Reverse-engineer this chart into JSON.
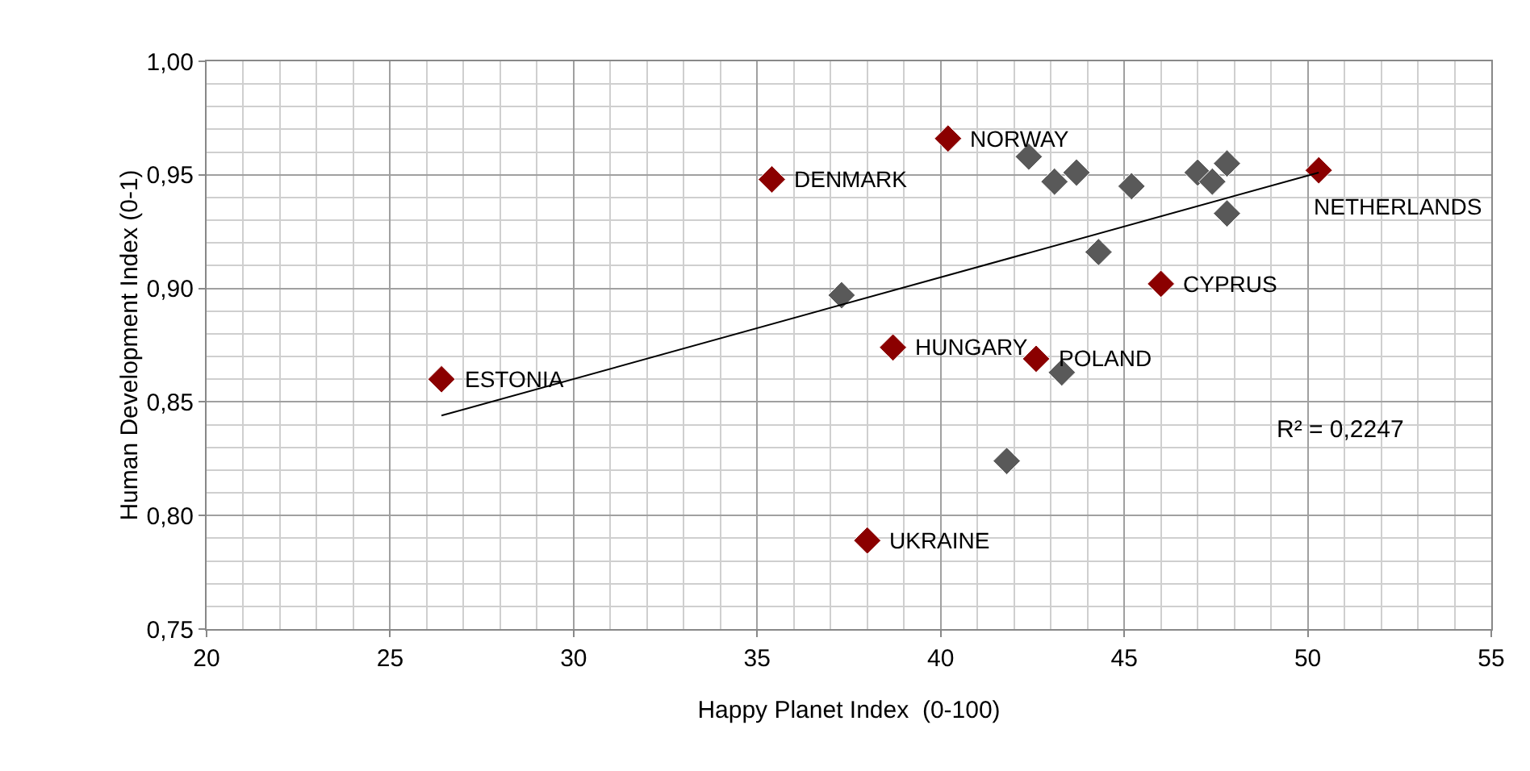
{
  "chart_data": {
    "type": "scatter",
    "xlabel": "Happy Planet Index  (0-100)",
    "ylabel": "Human Development Index (0-1)",
    "xlim": [
      20,
      55
    ],
    "xticks": [
      20,
      25,
      30,
      35,
      40,
      45,
      50,
      55
    ],
    "ylim": [
      0.75,
      1.0
    ],
    "yticks": [
      {
        "value": 0.75,
        "label": "0,75"
      },
      {
        "value": 0.8,
        "label": "0,80"
      },
      {
        "value": 0.85,
        "label": "0,85"
      },
      {
        "value": 0.9,
        "label": "0,90"
      },
      {
        "value": 0.95,
        "label": "0,95"
      },
      {
        "value": 1.0,
        "label": "1,00"
      }
    ],
    "grid": true,
    "marker": "diamond",
    "series": [
      {
        "color": "#595959",
        "x": [
          37.3,
          42.4,
          43.1,
          43.7,
          45.2,
          47.0,
          47.4,
          47.8,
          47.8,
          44.3,
          43.3,
          41.8
        ],
        "values": [
          0.897,
          0.958,
          0.947,
          0.951,
          0.945,
          0.951,
          0.947,
          0.955,
          0.933,
          0.916,
          0.863,
          0.824
        ]
      },
      {
        "color": "#8b0000",
        "x": [
          26.4,
          35.4,
          38.7,
          40.2,
          46.0,
          50.3,
          42.6,
          38.0
        ],
        "values": [
          0.86,
          0.948,
          0.874,
          0.966,
          0.902,
          0.952,
          0.869,
          0.789
        ]
      },
      {
        "type": "line",
        "color": "#000000",
        "marker": "none",
        "x": [
          26.4,
          50.3
        ],
        "values": [
          0.844,
          0.951
        ]
      }
    ],
    "annotations": [
      {
        "text": "ESTONIA",
        "x": 26.4,
        "y": 0.86
      },
      {
        "text": "DENMARK",
        "x": 35.4,
        "y": 0.948
      },
      {
        "text": "HUNGARY",
        "x": 38.7,
        "y": 0.874
      },
      {
        "text": "NORWAY",
        "x": 40.2,
        "y": 0.966
      },
      {
        "text": "CYPRUS",
        "x": 46.0,
        "y": 0.902
      },
      {
        "text": "NETHERLANDS",
        "x": 50.3,
        "y": 0.952
      },
      {
        "text": "POLAND",
        "x": 42.6,
        "y": 0.869
      },
      {
        "text": "UKRAINE",
        "x": 38.0,
        "y": 0.789
      },
      "R² = 0,2247"
    ]
  }
}
